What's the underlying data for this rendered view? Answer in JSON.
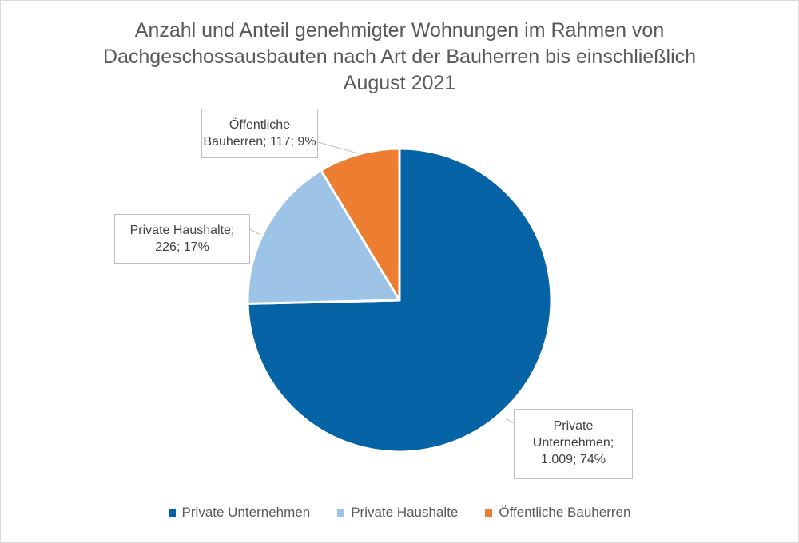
{
  "chart_data": {
    "type": "pie",
    "title_lines": [
      "Anzahl und Anteil genehmigter Wohnungen im Rahmen von",
      "Dachgeschossausbauten nach Art der Bauherren bis einschließlich",
      "August 2021"
    ],
    "slices": [
      {
        "name": "Private Unternehmen",
        "value": 1009,
        "percent": 74,
        "color": "#0563A6",
        "label_lines": [
          "Private",
          "Unternehmen;",
          "1.009; 74%"
        ]
      },
      {
        "name": "Private Haushalte",
        "value": 226,
        "percent": 17,
        "color": "#9DC3E6",
        "label_lines": [
          "Private Haushalte;",
          "226; 17%"
        ]
      },
      {
        "name": "Öffentliche Bauherren",
        "value": 117,
        "percent": 9,
        "color": "#ED7D31",
        "label_lines": [
          "Öffentliche",
          "Bauherren; 117; 9%"
        ]
      }
    ],
    "legend_position": "bottom",
    "start_angle": "12 o'clock",
    "direction": "clockwise"
  }
}
